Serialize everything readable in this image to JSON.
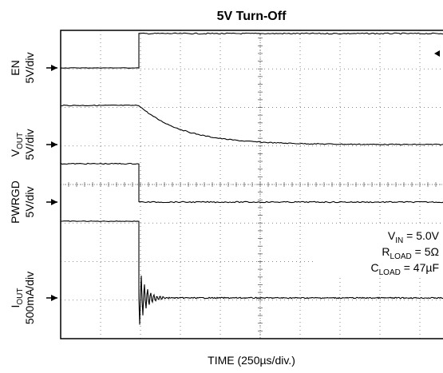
{
  "chart_data": {
    "type": "line",
    "title": "5V Turn-Off",
    "xlabel": "TIME (250µs/div.)",
    "x_divisions": 10,
    "y_divisions": 8,
    "grid": true,
    "channels": [
      {
        "name_main": "EN",
        "name_sub": "",
        "scale": "5V/div"
      },
      {
        "name_main": "V",
        "name_sub": "OUT",
        "scale": "5V/div"
      },
      {
        "name_main": "PWRGD",
        "name_sub": "",
        "scale": "5V/div"
      },
      {
        "name_main": "I",
        "name_sub": "OUT",
        "scale": "500mA/div"
      }
    ],
    "conditions": [
      {
        "main": "V",
        "sub": "IN",
        "rest": " = 5.0V"
      },
      {
        "main": "R",
        "sub": "LOAD",
        "rest": " = 5Ω"
      },
      {
        "main": "C",
        "sub": "LOAD",
        "rest": " = 47µF"
      }
    ],
    "colors": {
      "trace": "#000000",
      "grid": "#666666",
      "background": "#ffffff"
    }
  }
}
